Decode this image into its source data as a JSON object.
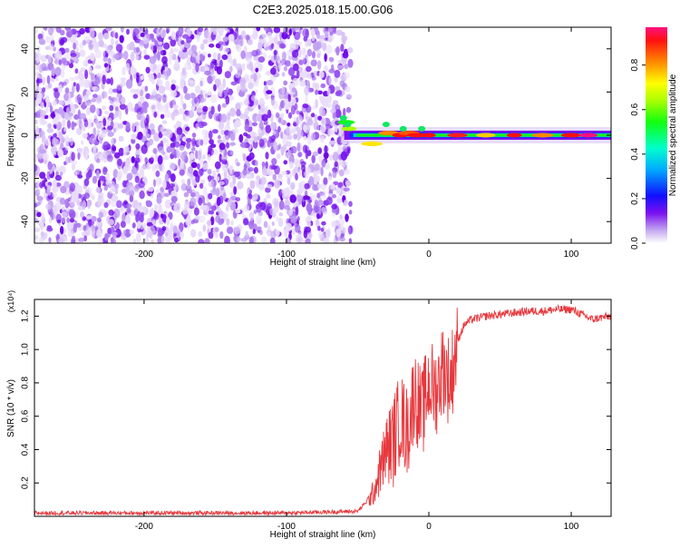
{
  "title": "C2E3.2025.018.15.00.G06",
  "chart_data": [
    {
      "type": "heatmap",
      "xlabel": "Height of straight line (km)",
      "ylabel": "Frequency (Hz)",
      "xlim": [
        -277,
        128
      ],
      "ylim": [
        -50,
        50
      ],
      "xticks": [
        "-200",
        "-100",
        "0",
        "100"
      ],
      "xtick_values": [
        -200,
        -100,
        0,
        100
      ],
      "yticks": [
        "-40",
        "-20",
        "0",
        "20",
        "40"
      ],
      "ytick_values": [
        -40,
        -20,
        0,
        20,
        40
      ],
      "colorbar": {
        "label": "Normalized spectral amplitude",
        "range": [
          0,
          0.97
        ],
        "ticks": [
          "0.0",
          "0.2",
          "0.4",
          "0.6",
          "0.8"
        ],
        "tick_values": [
          0.0,
          0.2,
          0.4,
          0.6,
          0.8
        ],
        "colormap": "rainbow"
      },
      "description_regions": {
        "noise_region_x": [
          -277,
          -60
        ],
        "signal_band_center_hz": 0
      }
    },
    {
      "type": "line",
      "xlabel": "Height of straight line (km)",
      "ylabel": "SNR (10 * v/v)",
      "y_multiplier": "(x10⁴)",
      "xlim": [
        -277,
        128
      ],
      "ylim": [
        0,
        1.3
      ],
      "xticks": [
        "-200",
        "-100",
        "0",
        "100"
      ],
      "xtick_values": [
        -200,
        -100,
        0,
        100
      ],
      "yticks": [
        "0.2",
        "0.4",
        "0.6",
        "0.8",
        "1.0",
        "1.2"
      ],
      "ytick_values": [
        0.2,
        0.4,
        0.6,
        0.8,
        1.0,
        1.2
      ],
      "series": [
        {
          "color": "#e8383d",
          "x": [
            -277,
            -200,
            -100,
            -50,
            -40,
            -35,
            -30,
            -25,
            -20,
            -15,
            -10,
            -5,
            0,
            5,
            10,
            15,
            20,
            25,
            30,
            40,
            50,
            60,
            70,
            80,
            90,
            100,
            105,
            110,
            115,
            120,
            128
          ],
          "values": [
            0.02,
            0.02,
            0.02,
            0.03,
            0.12,
            0.25,
            0.4,
            0.45,
            0.6,
            0.5,
            0.75,
            0.6,
            0.8,
            0.75,
            0.9,
            0.8,
            1.05,
            1.15,
            1.18,
            1.2,
            1.21,
            1.22,
            1.23,
            1.23,
            1.24,
            1.24,
            1.22,
            1.2,
            1.18,
            1.19,
            1.2
          ]
        }
      ]
    }
  ]
}
